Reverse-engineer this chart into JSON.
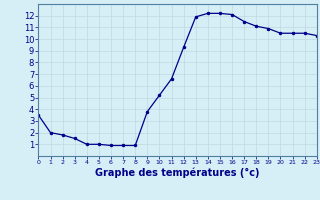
{
  "x": [
    0,
    1,
    2,
    3,
    4,
    5,
    6,
    7,
    8,
    9,
    10,
    11,
    12,
    13,
    14,
    15,
    16,
    17,
    18,
    19,
    20,
    21,
    22,
    23
  ],
  "y": [
    3.5,
    2.0,
    1.8,
    1.5,
    1.0,
    1.0,
    0.9,
    0.9,
    0.9,
    3.8,
    5.2,
    6.6,
    9.3,
    11.9,
    12.2,
    12.2,
    12.1,
    11.5,
    11.1,
    10.9,
    10.5,
    10.5,
    10.5,
    10.3
  ],
  "line_color": "#00008b",
  "marker": ".",
  "marker_size": 3,
  "xlabel": "Graphe des températures (°c)",
  "xlabel_fontsize": 7,
  "xlim": [
    0,
    23
  ],
  "ylim": [
    0,
    13
  ],
  "yticks": [
    1,
    2,
    3,
    4,
    5,
    6,
    7,
    8,
    9,
    10,
    11,
    12
  ],
  "xticks": [
    0,
    1,
    2,
    3,
    4,
    5,
    6,
    7,
    8,
    9,
    10,
    11,
    12,
    13,
    14,
    15,
    16,
    17,
    18,
    19,
    20,
    21,
    22,
    23
  ],
  "bg_color": "#d6eef5",
  "grid_color": "#c0d8e0",
  "tick_color": "#00008b",
  "axis_color": "#5080a0",
  "label_color": "#00008b"
}
